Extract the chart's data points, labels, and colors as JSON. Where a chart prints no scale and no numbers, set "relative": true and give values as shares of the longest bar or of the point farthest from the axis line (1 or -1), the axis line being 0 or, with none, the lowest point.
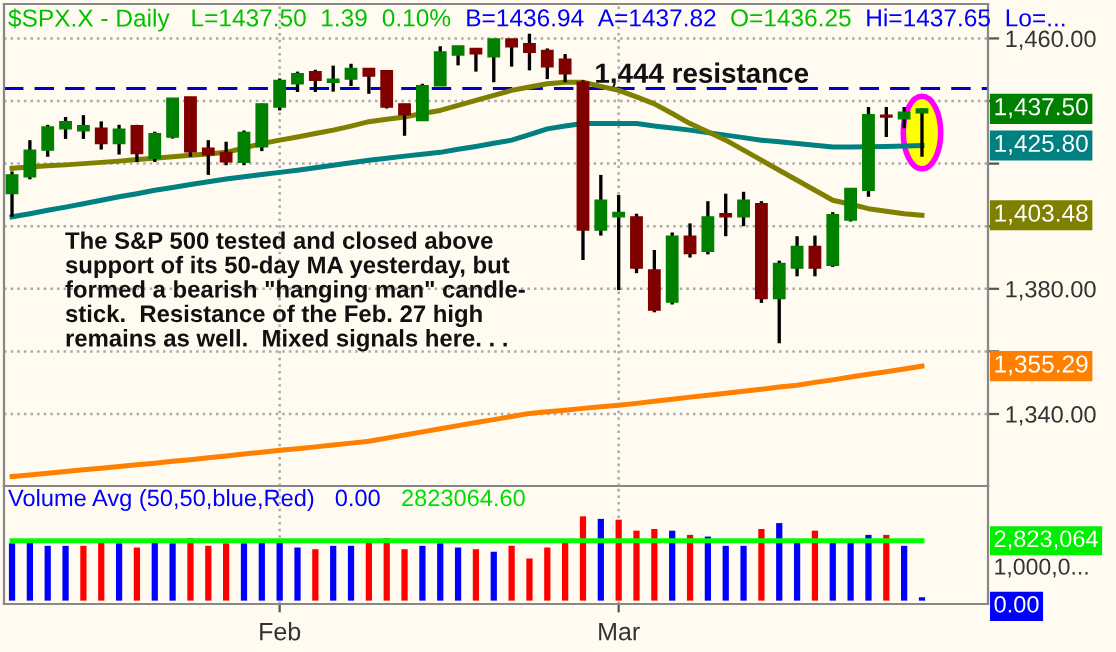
{
  "chart_data": [
    {
      "type": "candlestick",
      "title": "$SPX.X - Daily",
      "categories": [
        null,
        null,
        null,
        null,
        null,
        null,
        null,
        null,
        null,
        null,
        null,
        null,
        null,
        null,
        null,
        null,
        null,
        null,
        null,
        null,
        null,
        null,
        null,
        null,
        null,
        null,
        null,
        null,
        null,
        null,
        null,
        null,
        null,
        null,
        null,
        null,
        null,
        null,
        null,
        null,
        null,
        null,
        null,
        null,
        null,
        null,
        null,
        null,
        null,
        null,
        null,
        null
      ],
      "ohlc": [
        [
          1410.4,
          1417.5,
          1403,
          1416.4
        ],
        [
          1415.8,
          1427.5,
          1415,
          1424.3
        ],
        [
          1424.3,
          1432.4,
          1422.2,
          1431.7
        ],
        [
          1431.1,
          1434.9,
          1427.9,
          1433.4
        ],
        [
          1430.5,
          1435.5,
          1427.9,
          1432.1
        ],
        [
          1431.3,
          1433.5,
          1424.5,
          1426.4
        ],
        [
          1426.4,
          1432.4,
          1422.9,
          1431
        ],
        [
          1432.1,
          1432.4,
          1420.5,
          1423.2
        ],
        [
          1421.7,
          1430.2,
          1420.5,
          1429.6
        ],
        [
          1428.5,
          1440.9,
          1428,
          1440.9
        ],
        [
          1441.3,
          1441.3,
          1422.2,
          1423.8
        ],
        [
          1424.9,
          1427.5,
          1416.4,
          1422.8
        ],
        [
          1423.6,
          1427,
          1419.5,
          1420.6
        ],
        [
          1420.4,
          1430.6,
          1419.5,
          1430
        ],
        [
          1425.4,
          1439.2,
          1424,
          1439.1
        ],
        [
          1438.1,
          1447.2,
          1437,
          1446.6
        ],
        [
          1445.5,
          1449.4,
          1442.9,
          1448.7
        ],
        [
          1449.4,
          1450,
          1442.9,
          1446.6
        ],
        [
          1446,
          1451.3,
          1443,
          1447
        ],
        [
          1447,
          1451.9,
          1444.8,
          1450.4
        ],
        [
          1450.4,
          1450.4,
          1442.3,
          1448
        ],
        [
          1449.7,
          1449.7,
          1437.6,
          1438.1
        ],
        [
          1439.1,
          1439.1,
          1428.9,
          1435.6
        ],
        [
          1433.8,
          1445.5,
          1433.8,
          1444.9
        ],
        [
          1444.9,
          1457.5,
          1444.9,
          1455.7
        ],
        [
          1454.7,
          1457.6,
          1451.4,
          1457.6
        ],
        [
          1456.8,
          1456.8,
          1449.4,
          1455.1
        ],
        [
          1454.1,
          1459.8,
          1446,
          1459.8
        ],
        [
          1459.8,
          1459.8,
          1451,
          1457.3
        ],
        [
          1458.3,
          1461.5,
          1449.8,
          1455.6
        ],
        [
          1456.2,
          1456.8,
          1447,
          1450.9
        ],
        [
          1453.4,
          1455,
          1446,
          1448.7
        ],
        [
          1446,
          1446.6,
          1389.2,
          1398.8
        ],
        [
          1398.8,
          1416.4,
          1397,
          1408.3
        ],
        [
          1403,
          1410,
          1379.6,
          1404.4
        ],
        [
          1403,
          1404,
          1385,
          1386.6
        ],
        [
          1386,
          1392.4,
          1372.5,
          1373.2
        ],
        [
          1375.8,
          1398,
          1375,
          1396.8
        ],
        [
          1396.8,
          1400.9,
          1390,
          1391.3
        ],
        [
          1392,
          1408,
          1391,
          1403
        ],
        [
          1404,
          1410.4,
          1396.8,
          1403
        ],
        [
          1403,
          1411,
          1400,
          1408.3
        ],
        [
          1407.2,
          1408,
          1375.5,
          1376.9
        ],
        [
          1376.9,
          1389,
          1362.6,
          1388.1
        ],
        [
          1386.6,
          1396.8,
          1384,
          1393.5
        ],
        [
          1393.5,
          1397,
          1384,
          1386.6
        ],
        [
          1387.5,
          1404.5,
          1387,
          1403.7
        ],
        [
          1402,
          1412.2,
          1401.5,
          1412.1
        ],
        [
          1411.5,
          1438.1,
          1409.4,
          1435.6
        ],
        [
          1435.5,
          1438.1,
          1428.5,
          1434.9
        ],
        [
          1434.3,
          1438.1,
          1431.3,
          1436.4
        ],
        [
          1436.25,
          1437.65,
          1422.2,
          1437.5
        ]
      ],
      "series": [
        {
          "type": "line",
          "color": "#008080",
          "values": [
            1403,
            1404,
            1405.1,
            1406.1,
            1407.2,
            1408.3,
            1409.4,
            1410.4,
            1411.5,
            1412.4,
            1413.3,
            1414.2,
            1415.1,
            1415.8,
            1416.5,
            1417.2,
            1417.9,
            1418.7,
            1419.5,
            1420.3,
            1421.1,
            1421.7,
            1422.4,
            1423,
            1423.6,
            1424.6,
            1425.5,
            1426.5,
            1427.5,
            1429.3,
            1431.1,
            1432,
            1432.8,
            1432.8,
            1432.8,
            1432.8,
            1432,
            1431.4,
            1430.7,
            1429.9,
            1429.1,
            1428.3,
            1427.5,
            1427,
            1426.4,
            1425.9,
            1425.3,
            1425.3,
            1425.4,
            1425.5,
            1425.6,
            1425.8
          ]
        },
        {
          "type": "line",
          "color": "#808000",
          "values": [
            1418.5,
            1418.9,
            1419.3,
            1419.6,
            1420,
            1420.4,
            1420.8,
            1421.3,
            1421.7,
            1422.2,
            1422.7,
            1423.1,
            1423.6,
            1425,
            1426.4,
            1427.5,
            1428.5,
            1429.6,
            1430.7,
            1432,
            1433.4,
            1434.2,
            1434.9,
            1436,
            1437,
            1438.6,
            1440.2,
            1441.8,
            1443.4,
            1444.5,
            1445.5,
            1446,
            1446,
            1444.7,
            1443.4,
            1441.3,
            1439.1,
            1436,
            1432.8,
            1430.2,
            1427.5,
            1424.3,
            1421.1,
            1417.9,
            1414.7,
            1411.5,
            1408.3,
            1407,
            1405.6,
            1404.8,
            1404,
            1403.5
          ]
        },
        {
          "type": "line",
          "color": "#ff8000",
          "values": [
            1320,
            1320.5,
            1321.1,
            1321.6,
            1322.2,
            1322.7,
            1323.2,
            1323.8,
            1324.3,
            1324.9,
            1325.4,
            1326,
            1326.6,
            1327.2,
            1327.8,
            1328.4,
            1328.9,
            1329.5,
            1330.1,
            1330.7,
            1331.3,
            1332.3,
            1333.3,
            1334.3,
            1335.3,
            1336.3,
            1337.3,
            1338.2,
            1339.2,
            1340.2,
            1340.7,
            1341.2,
            1341.8,
            1342.3,
            1342.8,
            1343.4,
            1344.1,
            1344.7,
            1345.4,
            1346,
            1346.6,
            1347.3,
            1347.9,
            1348.6,
            1349.2,
            1350.1,
            1350.9,
            1351.8,
            1352.7,
            1353.5,
            1354.4,
            1355.3
          ]
        }
      ],
      "ylim": [
        1317,
        1471
      ],
      "yticks": [
        {
          "value": 1340,
          "label": "1,340.00"
        },
        {
          "value": 1360,
          "label": null
        },
        {
          "value": 1380,
          "label": "1,380.00"
        },
        {
          "value": 1400,
          "label": null
        },
        {
          "value": 1420,
          "label": null
        },
        {
          "value": 1440,
          "label": null
        },
        {
          "value": 1460,
          "label": "1,460.00"
        }
      ],
      "tick_labels": "y",
      "grid": true,
      "ref_lines": [
        {
          "axis": "y",
          "value": 1444,
          "label": "1,444 resistance",
          "color": "#0000cc",
          "line_style": "dashed"
        }
      ],
      "annotations": [
        "The S&P 500 tested and closed above\nsupport of its 50-day MA yesterday, but\nformed a bearish \"hanging man\" candle-\nstick.  Resistance of the Feb. 27 high\nremains as well.  Mixed signals here. . .",
        "L=1437.50",
        "1.39",
        "0.10%",
        "B=1436.94",
        "A=1437.82",
        "O=1436.25",
        "Hi=1437.65",
        "Lo=...",
        "1,437.50",
        "1,425.80",
        "1,403.48",
        "1,355.29"
      ]
    },
    {
      "type": "bar",
      "relative": true,
      "categories": [
        null,
        null,
        null,
        null,
        null,
        null,
        null,
        null,
        null,
        null,
        null,
        null,
        null,
        null,
        null,
        "Feb",
        null,
        null,
        null,
        null,
        null,
        null,
        null,
        null,
        null,
        null,
        null,
        null,
        null,
        null,
        null,
        null,
        null,
        null,
        "Mar",
        null,
        null,
        null,
        null,
        null,
        null,
        null,
        null,
        null,
        null,
        null,
        null,
        null,
        null,
        null,
        null,
        null
      ],
      "series": [
        {
          "type": "bar",
          "colors": [
            "#0000ff",
            "#0000ff",
            "#0000ff",
            "#0000ff",
            "#ff0000",
            "#ff0000",
            "#0000ff",
            "#ff0000",
            "#0000ff",
            "#0000ff",
            "#ff0000",
            "#ff0000",
            "#ff0000",
            "#0000ff",
            "#0000ff",
            "#0000ff",
            "#0000ff",
            "#ff0000",
            "#0000ff",
            "#0000ff",
            "#ff0000",
            "#ff0000",
            "#ff0000",
            "#0000ff",
            "#0000ff",
            "#0000ff",
            "#ff0000",
            "#0000ff",
            "#ff0000",
            "#ff0000",
            "#ff0000",
            "#ff0000",
            "#ff0000",
            "#0000ff",
            "#ff0000",
            "#ff0000",
            "#ff0000",
            "#0000ff",
            "#ff0000",
            "#0000ff",
            "#0000ff",
            "#0000ff",
            "#ff0000",
            "#0000ff",
            "#0000ff",
            "#ff0000",
            "#0000ff",
            "#0000ff",
            "#0000ff",
            "#ff0000",
            "#0000ff",
            "#0000ff"
          ],
          "values": [
            0.68,
            0.71,
            0.65,
            0.65,
            0.65,
            0.71,
            0.68,
            0.63,
            0.73,
            0.68,
            0.74,
            0.65,
            0.68,
            0.68,
            0.73,
            0.73,
            0.63,
            0.61,
            0.65,
            0.65,
            0.71,
            0.74,
            0.61,
            0.65,
            0.68,
            0.63,
            0.61,
            0.58,
            0.65,
            0.5,
            0.63,
            0.71,
            1,
            0.97,
            0.96,
            0.83,
            0.85,
            0.83,
            0.78,
            0.76,
            0.65,
            0.65,
            0.85,
            0.92,
            0.71,
            0.83,
            0.7,
            0.71,
            0.78,
            0.78,
            0.65,
            0.04
          ]
        },
        {
          "type": "line",
          "color": "#00ff00",
          "values": [
            0.71,
            0.71,
            0.71,
            0.71,
            0.71,
            0.71,
            0.71,
            0.71,
            0.71,
            0.71,
            0.71,
            0.71,
            0.71,
            0.71,
            0.71,
            0.71,
            0.71,
            0.71,
            0.71,
            0.71,
            0.71,
            0.71,
            0.71,
            0.71,
            0.71,
            0.71,
            0.71,
            0.71,
            0.71,
            0.71,
            0.71,
            0.71,
            0.71,
            0.71,
            0.71,
            0.71,
            0.71,
            0.71,
            0.71,
            0.71,
            0.71,
            0.71,
            0.71,
            0.71,
            0.71,
            0.71,
            0.71,
            0.71,
            0.71,
            0.71,
            0.71,
            0.71
          ]
        }
      ],
      "tick_labels": "x",
      "grid": "x",
      "annotations": [
        "Volume Avg (50,50,blue,Red)",
        "0.00",
        "2823064.60",
        "2,823,064",
        "1,000,0...",
        "0.00"
      ]
    }
  ]
}
